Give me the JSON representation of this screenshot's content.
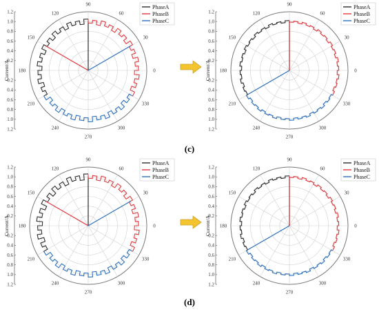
{
  "figure": {
    "captions": [
      "(c)",
      "(d)"
    ],
    "colors": {
      "PhaseA": "#2b2b2b",
      "PhaseB": "#e0393e",
      "PhaseC": "#2a6ebb",
      "arrow": "#f4c430",
      "arrowStroke": "#c9a227",
      "grid": "#cfcfcf",
      "outer": "#777777"
    }
  },
  "chart_data": [
    {
      "panel": "(c) left",
      "type": "polar-line",
      "ylabel": "Current/A",
      "radial_ticks": [
        "0.2",
        "0.4",
        "0.6",
        "0.8",
        "1.0",
        "1.2"
      ],
      "rlim": [
        0,
        1.2
      ],
      "angle_ticks": [
        "0",
        "30",
        "60",
        "90",
        "120",
        "150",
        "180",
        "210",
        "240",
        "270",
        "300",
        "330"
      ],
      "legend": [
        "PhaseA",
        "PhaseB",
        "PhaseC"
      ],
      "legend_position": "top-right",
      "series": [
        {
          "name": "PhaseA",
          "spoke_angle": 90,
          "arc": [
            90,
            210
          ],
          "radius": 1.0,
          "ripple": 0.05
        },
        {
          "name": "PhaseB",
          "spoke_angle": 150,
          "arc": [
            -30,
            90
          ],
          "radius": 1.0,
          "ripple": 0.05
        },
        {
          "name": "PhaseC",
          "spoke_angle": 30,
          "arc": [
            210,
            330
          ],
          "radius": 1.0,
          "ripple": 0.05
        }
      ]
    },
    {
      "panel": "(c) right",
      "type": "polar-line",
      "ylabel": "Current/A",
      "radial_ticks": [
        "0.2",
        "0.4",
        "0.6",
        "0.8",
        "1.0",
        "1.2"
      ],
      "rlim": [
        0,
        1.2
      ],
      "angle_ticks": [
        "0",
        "30",
        "60",
        "90",
        "120",
        "150",
        "180",
        "210",
        "240",
        "270",
        "300",
        "330"
      ],
      "legend": [
        "PhaseA",
        "PhaseB",
        "PhaseC"
      ],
      "legend_position": "top-right",
      "series": [
        {
          "name": "PhaseA",
          "spoke_angle": 90,
          "arc": [
            90,
            210
          ],
          "radius": 1.0,
          "ripple": 0.02
        },
        {
          "name": "PhaseB",
          "spoke_angle": 90,
          "arc": [
            -30,
            90
          ],
          "radius": 1.0,
          "ripple": 0.02
        },
        {
          "name": "PhaseC",
          "spoke_angle": 210,
          "arc": [
            210,
            330
          ],
          "radius": 1.0,
          "ripple": 0.02
        }
      ]
    },
    {
      "panel": "(d) left",
      "type": "polar-line",
      "ylabel": "Current/A",
      "radial_ticks": [
        "0.2",
        "0.4",
        "0.6",
        "0.8",
        "1.0",
        "1.2"
      ],
      "rlim": [
        0,
        1.2
      ],
      "angle_ticks": [
        "0",
        "30",
        "60",
        "90",
        "120",
        "150",
        "180",
        "210",
        "240",
        "270",
        "300",
        "330"
      ],
      "legend": [
        "PhaseA",
        "PhaseB",
        "PhaseC"
      ],
      "legend_position": "top-right",
      "series": [
        {
          "name": "PhaseA",
          "spoke_angle": 90,
          "arc": [
            90,
            210
          ],
          "radius": 1.0,
          "ripple": 0.06
        },
        {
          "name": "PhaseB",
          "spoke_angle": 150,
          "arc": [
            -30,
            90
          ],
          "radius": 1.0,
          "ripple": 0.05
        },
        {
          "name": "PhaseC",
          "spoke_angle": 30,
          "arc": [
            210,
            330
          ],
          "radius": 1.0,
          "ripple": 0.05
        }
      ]
    },
    {
      "panel": "(d) right",
      "type": "polar-line",
      "ylabel": "Current/A",
      "radial_ticks": [
        "0.2",
        "0.4",
        "0.6",
        "0.8",
        "1.0",
        "1.2"
      ],
      "rlim": [
        0,
        1.2
      ],
      "angle_ticks": [
        "0",
        "30",
        "60",
        "90",
        "120",
        "150",
        "180",
        "210",
        "240",
        "270",
        "300",
        "330"
      ],
      "legend": [
        "PhaseA",
        "PhaseB",
        "PhaseC"
      ],
      "legend_position": "top-right",
      "series": [
        {
          "name": "PhaseA",
          "spoke_angle": 90,
          "arc": [
            90,
            210
          ],
          "radius": 1.0,
          "ripple": 0.02
        },
        {
          "name": "PhaseB",
          "spoke_angle": 90,
          "arc": [
            -30,
            90
          ],
          "radius": 1.0,
          "ripple": 0.02
        },
        {
          "name": "PhaseC",
          "spoke_angle": 210,
          "arc": [
            210,
            330
          ],
          "radius": 1.0,
          "ripple": 0.02
        }
      ]
    }
  ]
}
